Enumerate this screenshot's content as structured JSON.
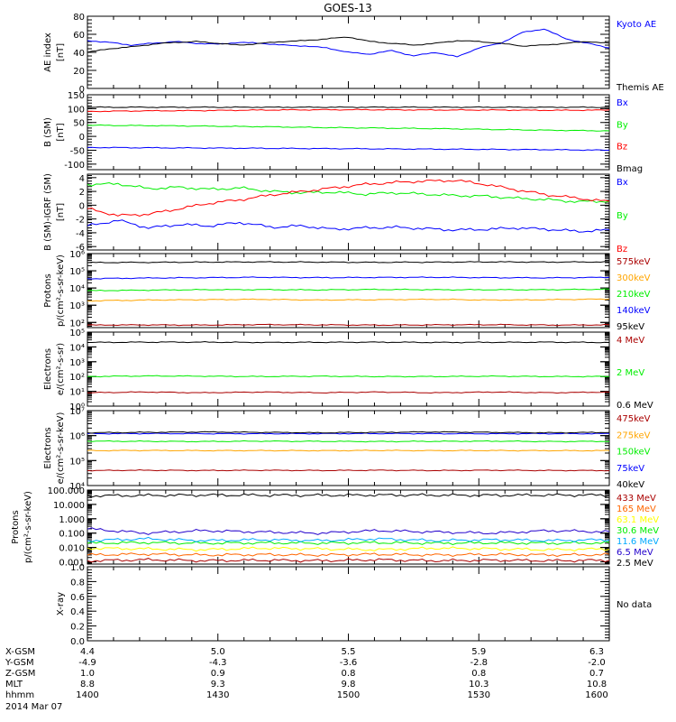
{
  "chart_data": {
    "type": "line",
    "title": "GOES-13",
    "date": "2014 Mar 07",
    "x_label": "hhmm",
    "x_ticks": [
      "1400",
      "1430",
      "1500",
      "1530",
      "1600"
    ],
    "ephemeris": [
      {
        "label": "X-GSM",
        "values": [
          "4.4",
          "5.0",
          "5.5",
          "5.9",
          "6.3"
        ]
      },
      {
        "label": "Y-GSM",
        "values": [
          "-4.9",
          "-4.3",
          "-3.6",
          "-2.8",
          "-2.0"
        ]
      },
      {
        "label": "Z-GSM",
        "values": [
          "1.0",
          "0.9",
          "0.8",
          "0.8",
          "0.7"
        ]
      },
      {
        "label": "MLT",
        "values": [
          "8.8",
          "9.3",
          "9.8",
          "10.3",
          "10.8"
        ]
      },
      {
        "label": "hhmm",
        "values": [
          "1400",
          "1430",
          "1500",
          "1530",
          "1600"
        ]
      }
    ],
    "panels": [
      {
        "ylabel": "AE index",
        "yunit": "[nT]",
        "scale": "linear",
        "ylim": [
          0,
          80
        ],
        "ticks": [
          {
            "v": 0,
            "t": "0"
          },
          {
            "v": 20,
            "t": "20"
          },
          {
            "v": 40,
            "t": "40"
          },
          {
            "v": 60,
            "t": "60"
          },
          {
            "v": 80,
            "t": "80"
          }
        ],
        "series": [
          {
            "name": "Kyoto AE",
            "color": "#0000ff",
            "values": [
              53,
              51,
              48,
              50,
              52,
              50,
              49,
              51,
              50,
              48,
              47,
              45,
              40,
              38,
              42,
              36,
              40,
              35,
              45,
              50,
              62,
              66,
              55,
              50,
              45
            ]
          },
          {
            "name": "Themis AE",
            "color": "#000000",
            "values": [
              40,
              44,
              46,
              49,
              51,
              52,
              50,
              48,
              50,
              52,
              53,
              55,
              57,
              52,
              50,
              48,
              50,
              53,
              52,
              50,
              47,
              48,
              50,
              52,
              50
            ]
          }
        ]
      },
      {
        "ylabel": "B (SM)",
        "yunit": "[nT]",
        "scale": "linear",
        "ylim": [
          -120,
          150
        ],
        "ticks": [
          {
            "v": -100,
            "t": "-100"
          },
          {
            "v": -50,
            "t": "-50"
          },
          {
            "v": 0,
            "t": "0"
          },
          {
            "v": 50,
            "t": "50"
          },
          {
            "v": 100,
            "t": "100"
          },
          {
            "v": 150,
            "t": "150"
          }
        ],
        "series": [
          {
            "name": "Bx",
            "color": "#0000ff",
            "values": [
              -40,
              -41,
              -42,
              -43,
              -44,
              -45,
              -46,
              -47,
              -48,
              -50
            ]
          },
          {
            "name": "By",
            "color": "#00ee00",
            "values": [
              40,
              39,
              37,
              35,
              32,
              30,
              28,
              25,
              22,
              20
            ]
          },
          {
            "name": "Bz",
            "color": "#ff0000",
            "values": [
              90,
              92,
              93,
              95,
              96,
              96,
              95,
              95,
              94,
              95
            ]
          },
          {
            "name": "Bmag",
            "color": "#000000",
            "values": [
              105,
              105,
              105,
              105,
              105,
              105,
              105,
              105,
              105,
              105
            ]
          }
        ]
      },
      {
        "ylabel": "B (SM)-IGRF (SM)",
        "yunit": "[nT]",
        "scale": "linear",
        "ylim": [
          -6.5,
          4.5
        ],
        "ticks": [
          {
            "v": -6,
            "t": "-6"
          },
          {
            "v": -4,
            "t": "-4"
          },
          {
            "v": -2,
            "t": "-2"
          },
          {
            "v": 0,
            "t": "0"
          },
          {
            "v": 2,
            "t": "2"
          },
          {
            "v": 4,
            "t": "4"
          }
        ],
        "series": [
          {
            "name": "Bx",
            "color": "#0000ff",
            "values": [
              -3,
              -2.2,
              -3.3,
              -2.8,
              -3,
              -2.5,
              -3.2,
              -3,
              -3.5,
              -3.3,
              -3.2,
              -3.4,
              -3.6,
              -3.5,
              -3.3,
              -3.5,
              -3.8,
              -3.6
            ]
          },
          {
            "name": "By",
            "color": "#00ee00",
            "values": [
              3,
              3.1,
              2.4,
              2.6,
              2.3,
              2.5,
              2,
              1.8,
              1.9,
              1.6,
              1.8,
              1.6,
              1.4,
              1.3,
              1,
              0.8,
              0.5,
              0.6
            ]
          },
          {
            "name": "Bz",
            "color": "#ff0000",
            "values": [
              -0.5,
              -1.5,
              -1.3,
              -0.5,
              0.3,
              0.8,
              1.5,
              2,
              2.5,
              3,
              3.3,
              3.5,
              3.6,
              3,
              2.2,
              1.5,
              1,
              0.5
            ]
          }
        ]
      },
      {
        "ylabel": "Protons",
        "yunit": "p/(cm²-s-sr-keV)",
        "scale": "log",
        "ylim": [
          50,
          1000000
        ],
        "ticks": [
          {
            "v": 100,
            "t": "10²"
          },
          {
            "v": 1000,
            "t": "10³"
          },
          {
            "v": 10000,
            "t": "10⁴"
          },
          {
            "v": 100000,
            "t": "10⁵"
          },
          {
            "v": 1000000,
            "t": "10⁶"
          }
        ],
        "series": [
          {
            "name": "575keV",
            "color": "#aa0000",
            "values": [
              70,
              72,
              70,
              75,
              72,
              70,
              72,
              74,
              70,
              72
            ]
          },
          {
            "name": "300keV",
            "color": "#ffa500",
            "values": [
              1800,
              2000,
              2100,
              2200,
              2000,
              2100,
              2200,
              2000,
              2100,
              2300
            ]
          },
          {
            "name": "210keV",
            "color": "#00ee00",
            "values": [
              7000,
              7500,
              8000,
              8000,
              7800,
              8200,
              8000,
              7900,
              8000,
              8500
            ]
          },
          {
            "name": "140keV",
            "color": "#0000ff",
            "values": [
              35000,
              38000,
              40000,
              42000,
              40000,
              41000,
              42000,
              40000,
              39000,
              42000
            ]
          },
          {
            "name": "95keV",
            "color": "#000000",
            "values": [
              300000,
              310000,
              320000,
              330000,
              320000,
              310000,
              320000,
              330000,
              320000,
              330000
            ]
          }
        ]
      },
      {
        "ylabel": "Electrons",
        "yunit": "e/(cm²-s-sr)",
        "scale": "log",
        "ylim": [
          1,
          100000
        ],
        "ticks": [
          {
            "v": 1,
            "t": "10⁰"
          },
          {
            "v": 10,
            "t": "10¹"
          },
          {
            "v": 100,
            "t": "10²"
          },
          {
            "v": 1000,
            "t": "10³"
          },
          {
            "v": 10000,
            "t": "10⁴"
          },
          {
            "v": 100000,
            "t": "10⁵"
          }
        ],
        "series": [
          {
            "name": "4 MeV",
            "color": "#aa0000",
            "values": [
              8,
              9,
              8,
              9,
              8,
              9,
              8,
              9,
              8,
              9
            ]
          },
          {
            "name": "2 MeV",
            "color": "#00ee00",
            "values": [
              100,
              110,
              105,
              100,
              105,
              100,
              100,
              105,
              100,
              100
            ]
          },
          {
            "name": "0.6 MeV",
            "color": "#000000",
            "values": [
              20000,
              21000,
              21000,
              20000,
              20500,
              21000,
              20000,
              20500,
              21000,
              20000
            ]
          }
        ]
      },
      {
        "ylabel": "Electrons",
        "yunit": "e/(cm²-s-sr-keV)",
        "scale": "log",
        "ylim": [
          10000,
          10000000
        ],
        "ticks": [
          {
            "v": 10000,
            "t": "10⁴"
          },
          {
            "v": 100000,
            "t": "10⁵"
          },
          {
            "v": 1000000,
            "t": "10⁶"
          },
          {
            "v": 10000000,
            "t": "10⁷"
          }
        ],
        "series": [
          {
            "name": "475keV",
            "color": "#aa0000",
            "values": [
              40000,
              41000,
              40000,
              41000,
              40000,
              41000,
              40000,
              41000,
              40000,
              40000
            ]
          },
          {
            "name": "275keV",
            "color": "#ffa500",
            "values": [
              250000,
              255000,
              250000,
              252000,
              250000,
              255000,
              250000,
              252000,
              250000,
              250000
            ]
          },
          {
            "name": "150keV",
            "color": "#00ee00",
            "values": [
              600000,
              590000,
              580000,
              600000,
              590000,
              580000,
              590000,
              600000,
              580000,
              590000
            ]
          },
          {
            "name": "75keV",
            "color": "#0000ff",
            "values": [
              1200000,
              1210000,
              1200000,
              1190000,
              1200000,
              1210000,
              1200000,
              1190000,
              1200000,
              1200000
            ]
          },
          {
            "name": "40keV",
            "color": "#000000",
            "values": [
              1300000,
              1350000,
              1400000,
              1350000,
              1300000,
              1350000,
              1400000,
              1350000,
              1300000,
              1350000
            ]
          }
        ]
      },
      {
        "ylabel": "Protons",
        "yunit": "p/(cm²-s-sr-keV)",
        "scale": "log",
        "ylim": [
          0.0007,
          100
        ],
        "ticks": [
          {
            "v": 0.001,
            "t": "0.001"
          },
          {
            "v": 0.01,
            "t": "0.010"
          },
          {
            "v": 0.1,
            "t": "0.100"
          },
          {
            "v": 1,
            "t": "1.000"
          },
          {
            "v": 10,
            "t": "10.000"
          },
          {
            "v": 100,
            "t": "100.000"
          }
        ],
        "series": [
          {
            "name": "433 MeV",
            "color": "#aa0000",
            "values": [
              0.0012,
              0.0014,
              0.0012,
              0.0013,
              0.0012,
              0.0014,
              0.0012,
              0.0013,
              0.0012,
              0.0013
            ]
          },
          {
            "name": "165 MeV",
            "color": "#ff6600",
            "values": [
              0.003,
              0.0035,
              0.003,
              0.0032,
              0.003,
              0.0034,
              0.003,
              0.0033,
              0.003,
              0.0032
            ]
          },
          {
            "name": "63.1 MeV",
            "color": "#ffff00",
            "values": [
              0.009,
              0.008,
              0.007,
              0.009,
              0.008,
              0.007,
              0.009,
              0.008,
              0.007,
              0.008
            ]
          },
          {
            "name": "30.6 MeV",
            "color": "#00ee00",
            "values": [
              0.02,
              0.022,
              0.02,
              0.021,
              0.02,
              0.022,
              0.02,
              0.021,
              0.02,
              0.021
            ]
          },
          {
            "name": "11.6 MeV",
            "color": "#00aaff",
            "values": [
              0.03,
              0.04,
              0.03,
              0.035,
              0.03,
              0.04,
              0.03,
              0.035,
              0.03,
              0.035
            ]
          },
          {
            "name": "6.5 MeV",
            "color": "#2200cc",
            "values": [
              0.2,
              0.1,
              0.15,
              0.12,
              0.1,
              0.15,
              0.12,
              0.1,
              0.15,
              0.12
            ]
          },
          {
            "name": "2.5 MeV",
            "color": "#000000",
            "values": [
              40,
              42,
              45,
              44,
              43,
              45,
              44,
              43,
              45,
              44
            ]
          }
        ]
      },
      {
        "ylabel": "X-ray",
        "yunit": "",
        "scale": "linear",
        "ylim": [
          0,
          1
        ],
        "ticks": [
          {
            "v": 0,
            "t": "0.0"
          },
          {
            "v": 0.2,
            "t": "0.2"
          },
          {
            "v": 0.4,
            "t": "0.4"
          },
          {
            "v": 0.6,
            "t": "0.6"
          },
          {
            "v": 0.8,
            "t": "0.8"
          },
          {
            "v": 1,
            "t": "1.0"
          }
        ],
        "series": [],
        "note": "No data"
      }
    ]
  }
}
